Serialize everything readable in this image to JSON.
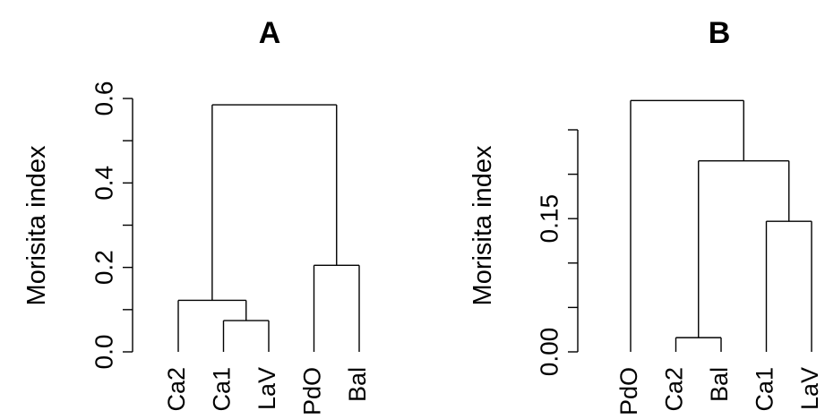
{
  "chart_data": [
    {
      "type": "dendrogram",
      "title": "A",
      "ylabel": "Morisita index",
      "ylim": [
        0,
        0.6
      ],
      "yticks": [
        0,
        0.1,
        0.2,
        0.3,
        0.4,
        0.5,
        0.6
      ],
      "ytick_labels": [
        "0.0",
        "",
        "0.2",
        "",
        "0.4",
        "",
        "0.6"
      ],
      "leaves": [
        "Ca2",
        "Ca1",
        "LaV",
        "PdO",
        "Bal"
      ],
      "merges": [
        {
          "left": "Ca1",
          "right": "LaV",
          "height": 0.074
        },
        {
          "left": "Ca2",
          "right": "Ca1+LaV",
          "height": 0.122
        },
        {
          "left": "PdO",
          "right": "Bal",
          "height": 0.205
        },
        {
          "left": "Ca2+Ca1+LaV",
          "right": "PdO+Bal",
          "height": 0.585
        }
      ]
    },
    {
      "type": "dendrogram",
      "title": "B",
      "ylabel": "Morisita index",
      "ylim": [
        0,
        0.25
      ],
      "yticks": [
        0,
        0.05,
        0.1,
        0.15,
        0.2,
        0.25
      ],
      "ytick_labels": [
        "0.00",
        "",
        "",
        "0.15",
        "",
        ""
      ],
      "leaves": [
        "PdO",
        "Ca2",
        "Bal",
        "Ca1",
        "LaV"
      ],
      "merges": [
        {
          "left": "Ca2",
          "right": "Bal",
          "height": 0.016
        },
        {
          "left": "Ca1",
          "right": "LaV",
          "height": 0.147
        },
        {
          "left": "Ca2+Bal",
          "right": "Ca1+LaV",
          "height": 0.215
        },
        {
          "left": "PdO",
          "right": "Ca2+Bal+Ca1+LaV",
          "height": 0.283
        }
      ]
    }
  ]
}
